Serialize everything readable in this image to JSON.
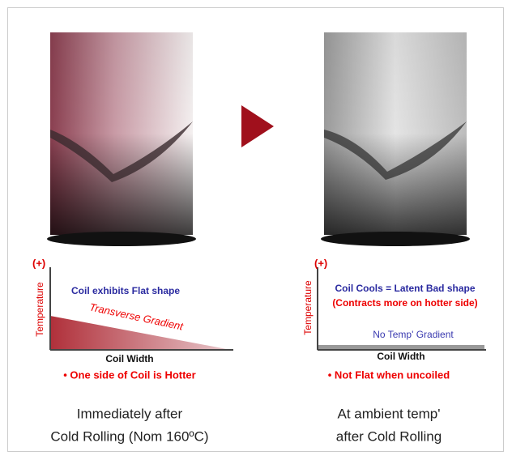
{
  "left": {
    "axis_top": "(+)",
    "axis_y": "Temperature",
    "shape_note": "Coil exhibits Flat shape",
    "gradient_label": "Transverse Gradient",
    "axis_x": "Coil Width",
    "bullet": "• One side of Coil is Hotter",
    "caption": [
      "Immediately after",
      "Cold Rolling (Nom 160ºC)"
    ]
  },
  "right": {
    "axis_top": "(+)",
    "axis_y": "Temperature",
    "shape_note": "Coil Cools = Latent Bad shape",
    "shape_note_2": "(Contracts more on hotter side)",
    "gradient_label": "No Temp' Gradient",
    "axis_x": "Coil Width",
    "bullet": "• Not Flat when uncoiled",
    "caption": [
      "At ambient temp'",
      "after Cold Rolling"
    ]
  }
}
